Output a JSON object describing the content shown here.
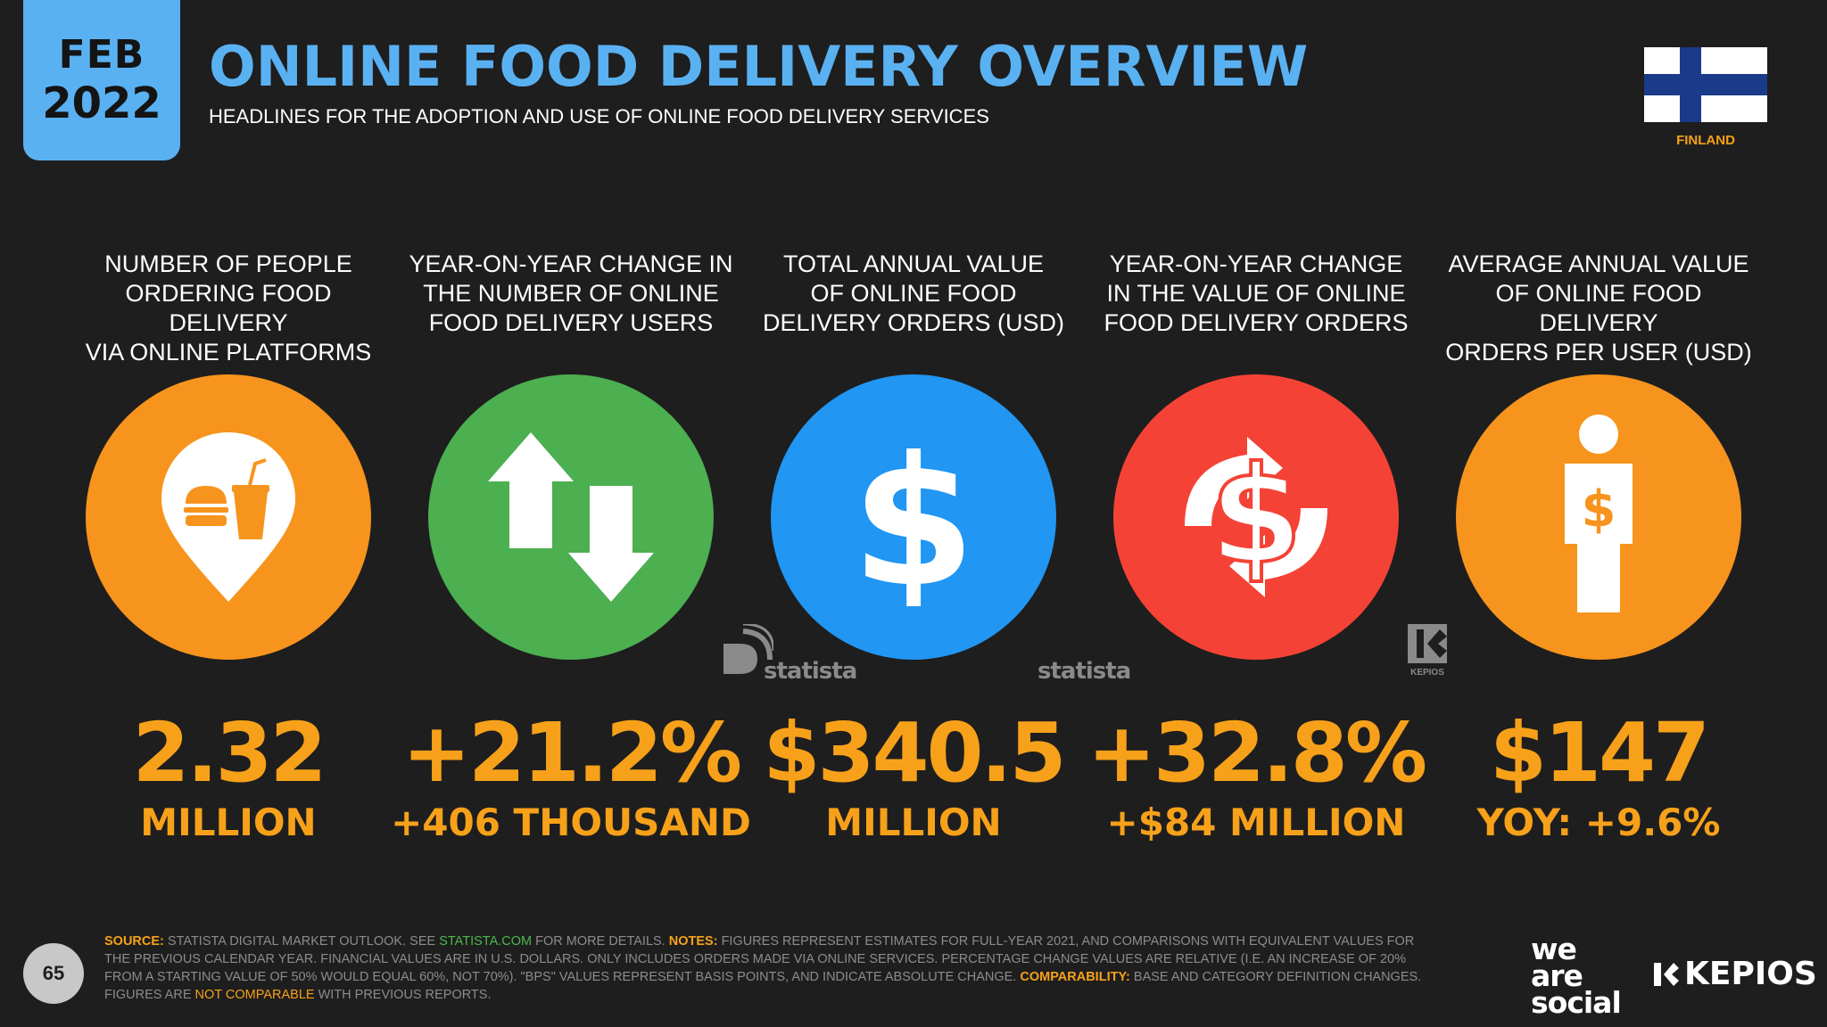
{
  "header": {
    "month": "FEB",
    "year": "2022",
    "title": "ONLINE FOOD DELIVERY OVERVIEW",
    "subtitle": "HEADLINES FOR THE ADOPTION AND USE OF ONLINE FOOD DELIVERY SERVICES",
    "country": "FINLAND"
  },
  "colors": {
    "background": "#1e1e1e",
    "accent_blue": "#5ab1f2",
    "accent_orange": "#f7a11a",
    "green": "#4caf50",
    "blue": "#2196f3",
    "red": "#f44336"
  },
  "stats": [
    {
      "label": "NUMBER OF PEOPLE\nORDERING FOOD DELIVERY\nVIA ONLINE PLATFORMS",
      "value": "2.32",
      "sub": "MILLION",
      "icon": "food-location-pin-icon",
      "color": "#f7941d"
    },
    {
      "label": "YEAR-ON-YEAR CHANGE IN\nTHE NUMBER OF ONLINE\nFOOD DELIVERY USERS",
      "value": "+21.2%",
      "sub": "+406 THOUSAND",
      "icon": "up-down-arrows-icon",
      "color": "#4caf50"
    },
    {
      "label": "TOTAL ANNUAL VALUE\nOF ONLINE FOOD\nDELIVERY ORDERS (USD)",
      "value": "$340.5",
      "sub": "MILLION",
      "icon": "dollar-icon",
      "color": "#2196f3"
    },
    {
      "label": "YEAR-ON-YEAR CHANGE\nIN THE VALUE OF ONLINE\nFOOD DELIVERY ORDERS",
      "value": "+32.8%",
      "sub": "+$84 MILLION",
      "icon": "dollar-exchange-icon",
      "color": "#f44336"
    },
    {
      "label": "AVERAGE ANNUAL VALUE\nOF ONLINE FOOD DELIVERY\nORDERS PER USER (USD)",
      "value": "$147",
      "sub": "YOY: +9.6%",
      "icon": "person-dollar-icon",
      "color": "#f7941d"
    }
  ],
  "watermarks": {
    "statista": "statista",
    "kepios_small": "KEPIOS"
  },
  "footer": {
    "page": "65",
    "source_label": "SOURCE:",
    "source_text": "STATISTA DIGITAL MARKET OUTLOOK. SEE",
    "source_link": "STATISTA.COM",
    "source_text2": "FOR MORE DETAILS.",
    "notes_label": "NOTES:",
    "notes_text": "FIGURES REPRESENT ESTIMATES FOR FULL-YEAR 2021, AND COMPARISONS WITH EQUIVALENT VALUES FOR THE PREVIOUS CALENDAR YEAR. FINANCIAL VALUES ARE IN U.S. DOLLARS. ONLY INCLUDES ORDERS MADE VIA ONLINE SERVICES. PERCENTAGE CHANGE VALUES ARE RELATIVE (I.E. AN INCREASE OF 20% FROM A STARTING VALUE OF 50% WOULD EQUAL 60%, NOT 70%). \"BPS\" VALUES REPRESENT BASIS POINTS, AND INDICATE ABSOLUTE CHANGE.",
    "comparability_label": "COMPARABILITY:",
    "comparability_text": "BASE AND CATEGORY DEFINITION CHANGES. FIGURES ARE",
    "not_comparable": "NOT COMPARABLE",
    "comparability_text2": "WITH PREVIOUS REPORTS.",
    "brand1_line1": "we",
    "brand1_line2": "are",
    "brand1_line3": "social",
    "brand2": "KEPIOS"
  }
}
